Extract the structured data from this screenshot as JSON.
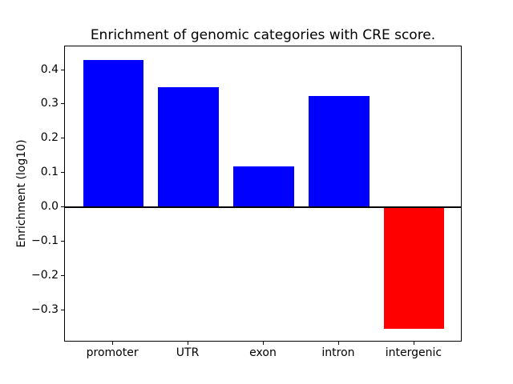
{
  "figure": {
    "background": "#ffffff"
  },
  "chart_data": {
    "type": "bar",
    "title": "Enrichment of genomic categories with CRE score.",
    "xlabel": "",
    "ylabel": "Enrichment (log10)",
    "categories": [
      "promoter",
      "UTR",
      "exon",
      "intron",
      "intergenic"
    ],
    "values": [
      0.43,
      0.35,
      0.12,
      0.325,
      -0.355
    ],
    "bar_colors": [
      "#0000ff",
      "#0000ff",
      "#0000ff",
      "#0000ff",
      "#ff0000"
    ],
    "positive_color": "#0000ff",
    "negative_color": "#ff0000",
    "bar_width": 0.8,
    "xlim": [
      -0.64,
      4.64
    ],
    "ylim": [
      -0.394,
      0.469
    ],
    "yticks": [
      0.4,
      0.3,
      0.2,
      0.1,
      0.0,
      -0.1,
      -0.2,
      -0.3
    ],
    "ytick_labels": [
      "0.4",
      "0.3",
      "0.2",
      "0.1",
      "0.0",
      "−0.1",
      "−0.2",
      "−0.3"
    ],
    "zero_line": {
      "value": 0.0,
      "color": "#000000",
      "thickness_px": 2
    },
    "grid": false,
    "legend": null,
    "axis_color": "#000000",
    "text_color": "#000000"
  }
}
